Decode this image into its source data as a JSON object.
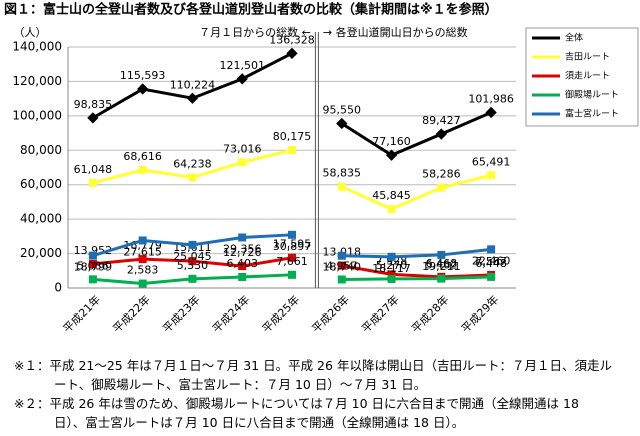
{
  "chart_data": {
    "type": "line",
    "title": "図１：富士山の全登山者数及び各登山道別登山者数の比較（集計期間は※１を参照）",
    "y_label": "（人）",
    "annotations": {
      "left": "７月１日からの総数 ←",
      "right": "→ 各登山道開山日からの総数"
    },
    "divider_after_index": 4,
    "categories": [
      "平成21年",
      "平成22年",
      "平成23年",
      "平成24年",
      "平成25年",
      "平成26年",
      "平成27年",
      "平成28年",
      "平成29年"
    ],
    "ylim": [
      0,
      140000
    ],
    "yticks": [
      0,
      {
        "value": 20000,
        "label": "20,000"
      },
      {
        "value": 40000,
        "label": "40,000"
      },
      {
        "value": 60000,
        "label": "60,000"
      },
      {
        "value": 80000,
        "label": "80,000"
      },
      {
        "value": 100000,
        "label": "100,000"
      },
      {
        "value": 120000,
        "label": "120,000"
      },
      {
        "value": 140000,
        "label": "140,000"
      }
    ],
    "grid": true,
    "legend": "right",
    "series": [
      {
        "name": "全体",
        "color": "#000000",
        "values": [
          98835,
          115593,
          110224,
          121501,
          136328,
          95550,
          77160,
          89427,
          101986
        ],
        "value_labels": [
          "98,835",
          "115,593",
          "110,224",
          "121,501",
          "136,328",
          "95,550",
          "77,160",
          "89,427",
          "101,986"
        ]
      },
      {
        "name": "吉田ルート",
        "color": "#ffff33",
        "values": [
          61048,
          68616,
          64238,
          73016,
          80175,
          58835,
          45845,
          58286,
          65491
        ],
        "value_labels": [
          "61,048",
          "68,616",
          "64,238",
          "73,016",
          "80,175",
          "58,835",
          "45,845",
          "58,286",
          "65,491"
        ]
      },
      {
        "name": "須走ルート",
        "color": "#e00000",
        "values": [
          13952,
          16779,
          15611,
          12726,
          17595,
          13018,
          7928,
          6468,
          7587
        ],
        "value_labels": [
          "13,952",
          "16,779",
          "15,611",
          "12,726",
          "17,595",
          "13,018",
          "7,928",
          "6,468",
          "7,587"
        ]
      },
      {
        "name": "御殿場ルート",
        "color": "#00b050",
        "values": [
          5036,
          2583,
          5330,
          6403,
          7661,
          4957,
          5270,
          5462,
          6448
        ],
        "value_labels": [
          "5,036",
          "2,583",
          "5,330",
          "6,403",
          "7,661",
          "4,957",
          "5,270",
          "5,462",
          "6,448"
        ]
      },
      {
        "name": "富士宮ルート",
        "color": "#1f6eb4",
        "values": [
          18799,
          27615,
          25045,
          29356,
          30897,
          18740,
          18117,
          19211,
          22460
        ],
        "value_labels": [
          "18,799",
          "27,615",
          "25,045",
          "29,356",
          "30,897",
          "18,740",
          "18,117",
          "19,211",
          "22,460"
        ]
      }
    ]
  },
  "notes": [
    "※１：平成 21～25 年は７月１日～７月 31 日。平成 26 年以降は開山日（吉田ルート：７月１日、須走ルート、御殿場ルート、富士宮ルート：７月 10 日）～７月 31 日。",
    "※２：平成 26 年は雪のため、御殿場ルートについては７月 10 日に六合目まで開通（全線開通は 18 日）、富士宮ルートは７月 10 日に八合目まで開通（全線開通は 18 日）。"
  ]
}
